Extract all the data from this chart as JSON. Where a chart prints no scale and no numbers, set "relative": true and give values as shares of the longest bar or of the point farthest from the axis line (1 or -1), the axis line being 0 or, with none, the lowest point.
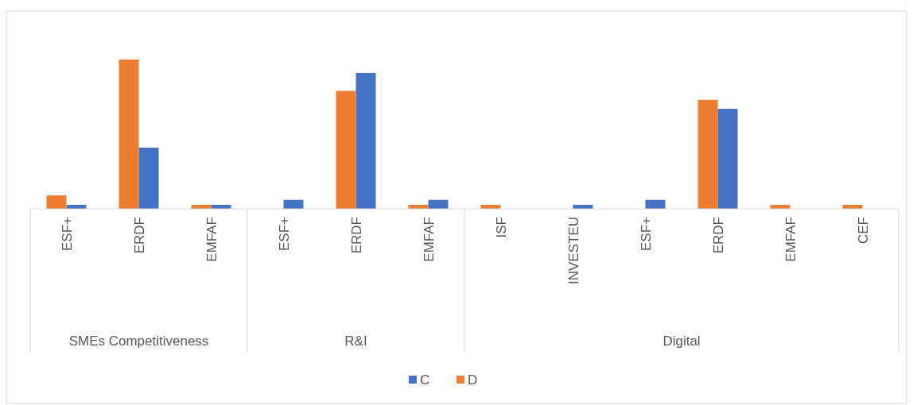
{
  "chart_data": {
    "type": "bar",
    "relative": true,
    "categories": [
      "ESF+",
      "ERDF",
      "EMFAF",
      "ESF+",
      "ERDF",
      "EMFAF",
      "ISF",
      "INVESTEU",
      "ESF+",
      "ERDF",
      "EMFAF",
      "CEF"
    ],
    "series": [
      {
        "name": "C",
        "color": "#4472c4",
        "values": [
          0.027,
          0.41,
          0.027,
          0.06,
          0.91,
          0.06,
          null,
          0.027,
          0.06,
          0.67,
          null,
          null
        ]
      },
      {
        "name": "D",
        "color": "#ed7d31",
        "values": [
          0.09,
          1,
          0.027,
          null,
          0.79,
          0.027,
          0.027,
          null,
          null,
          0.73,
          0.027,
          0.027
        ]
      }
    ],
    "annotations": [
      "SMEs Competitiveness",
      "R&I",
      "Digital"
    ],
    "legend": "bottom"
  }
}
